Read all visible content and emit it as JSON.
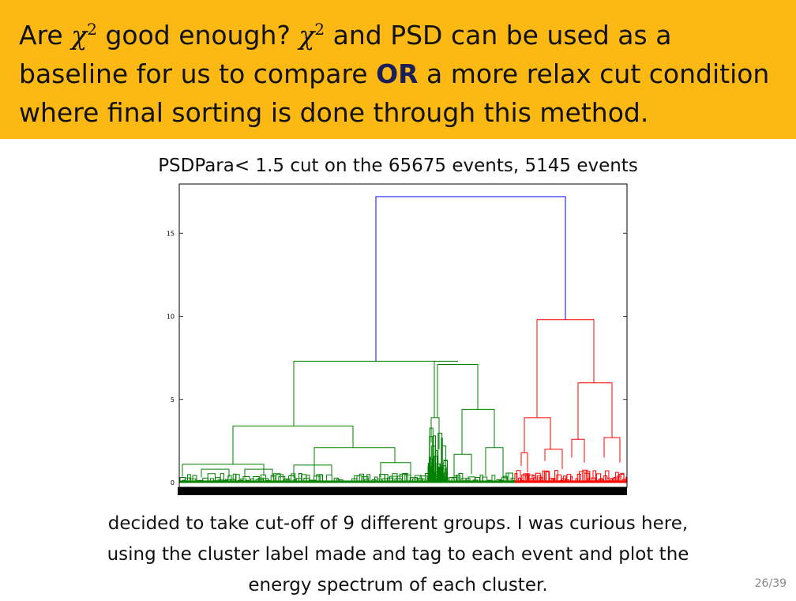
{
  "header": {
    "line1_a": "Are ",
    "chi_symbol": "χ",
    "chi_power": "2",
    "line1_b": " good enough? ",
    "line1_c": " and PSD can be used as a",
    "line2_a": "baseline for us to compare ",
    "line2_bold": "OR",
    "line2_b": " a more relax cut condition",
    "line3": "where final sorting is done through this method."
  },
  "chart_title": "PSDPara< 1.5 cut on the 65675 events, 5145 events",
  "chart_data": {
    "type": "dendrogram",
    "yticks": [
      "0",
      "5",
      "10",
      "15"
    ],
    "ylim": [
      0,
      18
    ],
    "colors": {
      "green": "#008000",
      "red": "#ff0000",
      "blue": "#0000ff"
    },
    "merges": [
      {
        "color": "blue",
        "height": 17.2,
        "left_height": 7.3,
        "right_height": 9.8
      },
      {
        "color": "green",
        "height": 7.3,
        "left_height": 3.4,
        "right_height": 7.1
      },
      {
        "color": "green",
        "height": 7.1,
        "left_height": 3.9,
        "right_height": 4.4
      },
      {
        "color": "green",
        "height": 4.4,
        "left_height": 1.7,
        "right_height": 2.1
      },
      {
        "color": "green",
        "height": 3.4,
        "left_height": 1.1,
        "right_height": 2.1
      },
      {
        "color": "red",
        "height": 9.8,
        "left_height": 3.9,
        "right_height": 6.0
      },
      {
        "color": "red",
        "height": 6.0,
        "left_height": 2.6,
        "right_height": 2.7
      },
      {
        "color": "red",
        "height": 3.9,
        "left_height": 1.8,
        "right_height": 2.0
      }
    ]
  },
  "caption": {
    "line1": "decided to take cut-off of 9 different groups. I was curious here,",
    "line2": "using the cluster label made and tag to each event and plot the",
    "line3": "energy spectrum of each cluster."
  },
  "page_number": "26/39"
}
